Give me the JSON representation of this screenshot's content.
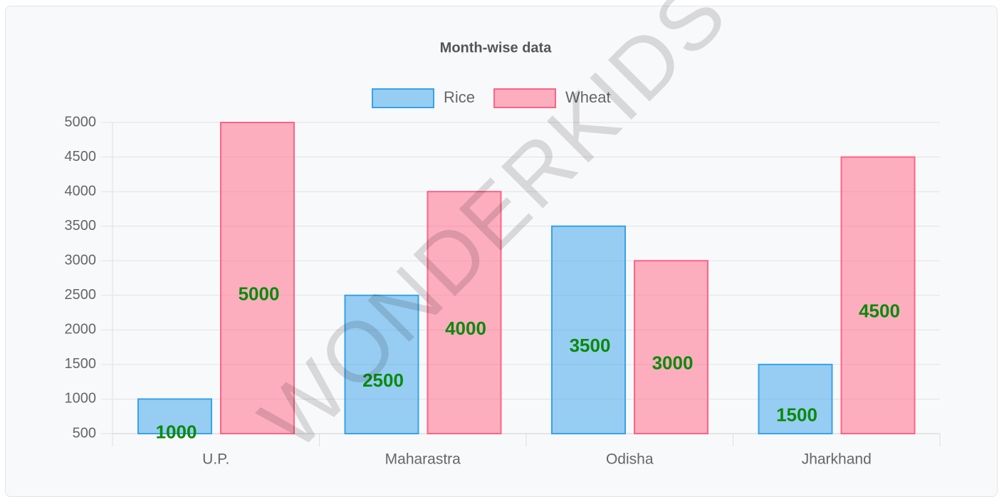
{
  "chart_data": {
    "type": "bar",
    "title": "Month-wise data",
    "watermark": "WONDERKIDS",
    "categories": [
      "U.P.",
      "Maharastra",
      "Odisha",
      "Jharkhand"
    ],
    "series": [
      {
        "name": "Rice",
        "color": "#36a2eb",
        "values": [
          1000,
          2500,
          3500,
          1500
        ]
      },
      {
        "name": "Wheat",
        "color": "#ff6384",
        "values": [
          5000,
          4000,
          3000,
          4500
        ]
      }
    ],
    "ylim": [
      500,
      5000
    ],
    "yticks": [
      500,
      1000,
      1500,
      2000,
      2500,
      3000,
      3500,
      4000,
      4500,
      5000
    ],
    "grid": true,
    "legend": "top",
    "data_label_color": "#0a8a0a"
  }
}
